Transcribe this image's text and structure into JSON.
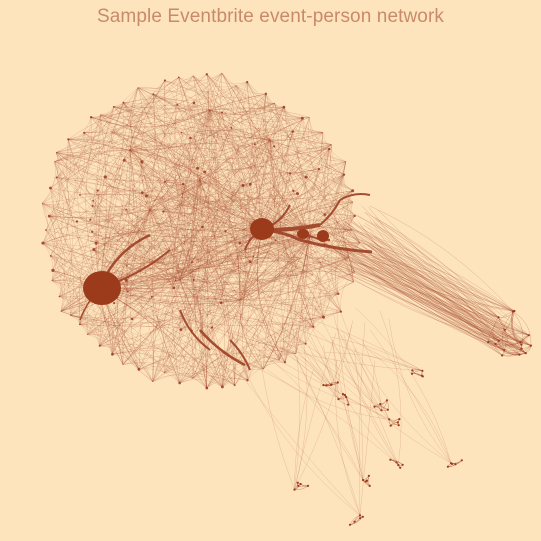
{
  "title": "Sample Eventbrite event-person network",
  "colors": {
    "background": "#fde4bd",
    "title": "#c98a6a",
    "edge": "#a0442a",
    "node": "#9c3a1c"
  }
}
